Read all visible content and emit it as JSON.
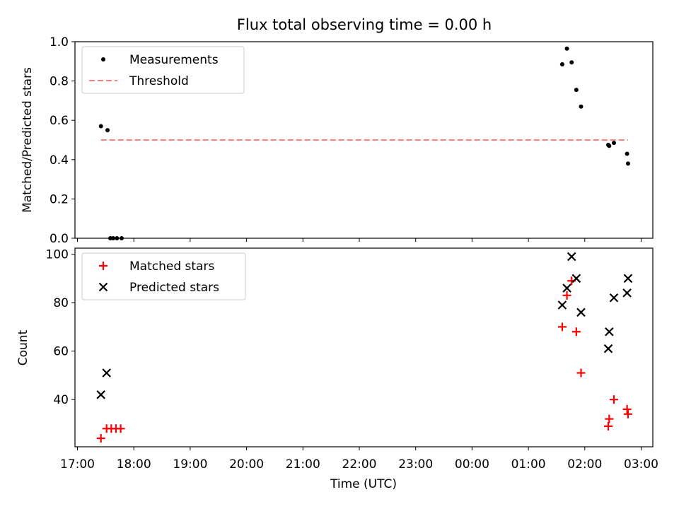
{
  "chart_data": [
    {
      "type": "scatter",
      "title": "Flux total observing time = 0.00 h",
      "xlabel": "",
      "ylabel": "Matched/Predicted stars",
      "ylim": [
        0,
        1.0
      ],
      "yticks": [
        "0.0",
        "0.2",
        "0.4",
        "0.6",
        "0.8",
        "1.0"
      ],
      "legend_position": "top-left",
      "series": [
        {
          "name": "Measurements",
          "marker": "dot",
          "color": "#000000",
          "x": [
            "17:25",
            "17:32",
            "17:35",
            "17:38",
            "17:42",
            "17:47",
            "01:36",
            "01:41",
            "01:46",
            "01:51",
            "01:56",
            "02:25",
            "02:26",
            "02:31",
            "02:45",
            "02:46"
          ],
          "y": [
            0.57,
            0.55,
            0.0,
            0.0,
            0.0,
            0.0,
            0.885,
            0.965,
            0.895,
            0.755,
            0.67,
            0.475,
            0.47,
            0.485,
            0.43,
            0.38
          ]
        },
        {
          "name": "Threshold",
          "style": "dashed",
          "color": "#ff8080",
          "x": [
            "17:25",
            "02:46"
          ],
          "y": [
            0.5,
            0.5
          ]
        }
      ]
    },
    {
      "type": "scatter",
      "xlabel": "Time (UTC)",
      "ylabel": "Count",
      "ylim": [
        20.5,
        102.5
      ],
      "yticks": [
        "40",
        "60",
        "80",
        "100"
      ],
      "legend_position": "top-left",
      "series": [
        {
          "name": "Matched stars",
          "marker": "plus",
          "color": "#ff0000",
          "x": [
            "17:25",
            "17:31",
            "17:36",
            "17:41",
            "17:46",
            "01:36",
            "01:41",
            "01:46",
            "01:51",
            "01:56",
            "02:25",
            "02:26",
            "02:31",
            "02:45",
            "02:46"
          ],
          "y": [
            24,
            28,
            28,
            28,
            28,
            70,
            83,
            89,
            68,
            51,
            29,
            32,
            40,
            36,
            34
          ]
        },
        {
          "name": "Predicted stars",
          "marker": "x",
          "color": "#000000",
          "x": [
            "17:25",
            "17:31",
            "01:36",
            "01:41",
            "01:46",
            "01:51",
            "01:56",
            "02:25",
            "02:26",
            "02:31",
            "02:45",
            "02:46"
          ],
          "y": [
            42,
            51,
            79,
            86,
            99,
            90,
            76,
            61,
            68,
            82,
            84,
            90
          ]
        }
      ]
    }
  ],
  "x_axis": {
    "start": "17:00",
    "end": "03:00",
    "ticks": [
      "17:00",
      "18:00",
      "19:00",
      "20:00",
      "21:00",
      "22:00",
      "23:00",
      "00:00",
      "01:00",
      "02:00",
      "03:00"
    ]
  }
}
